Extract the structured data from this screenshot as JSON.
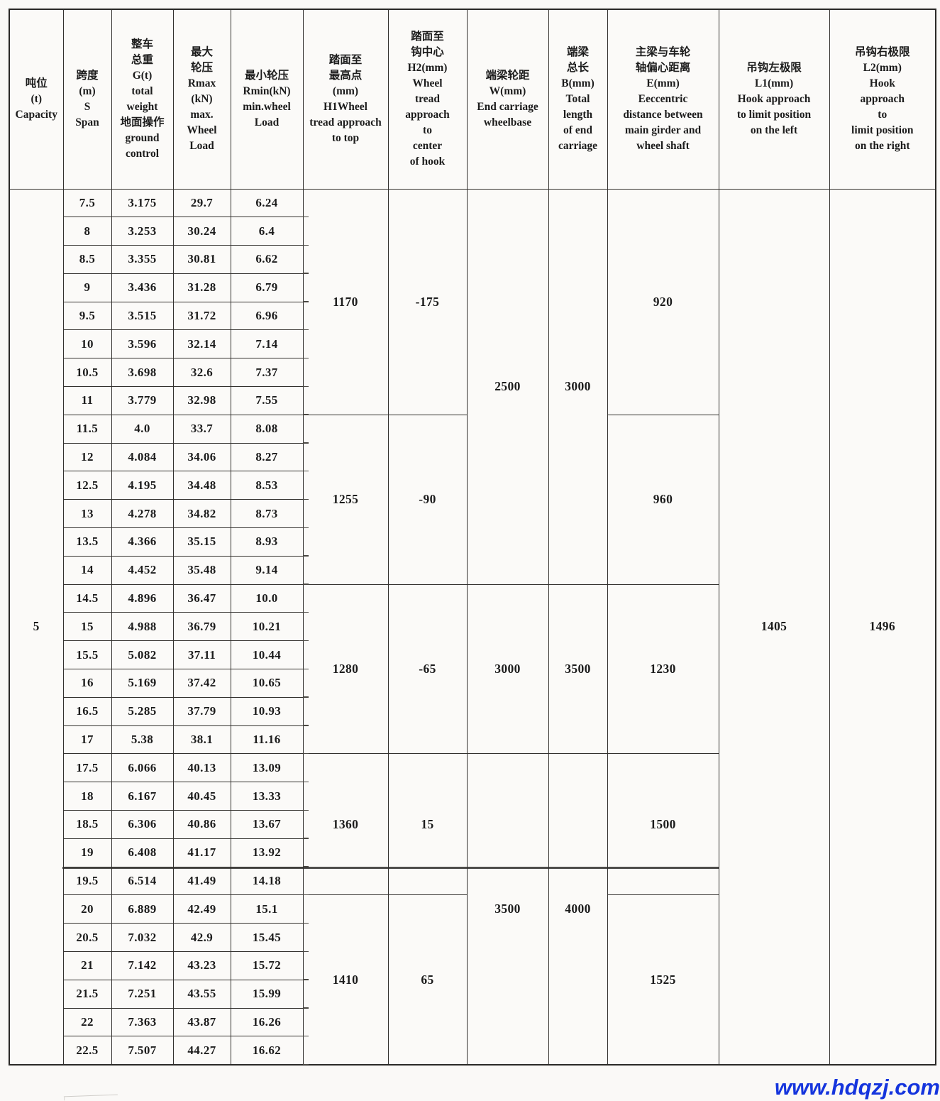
{
  "table": {
    "columns": [
      {
        "id": "capacity",
        "label_lines": [
          "吨位",
          "(t)",
          "Capacity"
        ]
      },
      {
        "id": "span",
        "label_lines": [
          "跨度",
          "(m)",
          "S",
          "Span"
        ]
      },
      {
        "id": "g",
        "label_lines": [
          "整车",
          "总重",
          "G(t)",
          "total",
          "weight",
          "地面操作",
          "ground",
          "control"
        ]
      },
      {
        "id": "rmax",
        "label_lines": [
          "最大",
          "轮压",
          "Rmax",
          "(kN)",
          "max.",
          "Wheel",
          "Load"
        ]
      },
      {
        "id": "rmin",
        "label_lines": [
          "最小轮压",
          "Rmin(kN)",
          "min.wheel",
          "Load"
        ]
      },
      {
        "id": "h1",
        "label_lines": [
          "踏面至",
          "最高点",
          "(mm)",
          "H1Wheel",
          "tread approach",
          "to top"
        ]
      },
      {
        "id": "h2",
        "label_lines": [
          "踏面至",
          "钩中心",
          "H2(mm)",
          "Wheel",
          "tread",
          "approach",
          "to",
          "center",
          "of hook"
        ]
      },
      {
        "id": "w",
        "label_lines": [
          "端梁轮距",
          "W(mm)",
          "End carriage",
          "wheelbase"
        ]
      },
      {
        "id": "b",
        "label_lines": [
          "端梁",
          "总长",
          "B(mm)",
          "Total",
          "length",
          "of end",
          "carriage"
        ]
      },
      {
        "id": "e",
        "label_lines": [
          "主梁与车轮",
          "轴偏心距离",
          "E(mm)",
          "Eeccentric",
          "distance between",
          "main girder and",
          "wheel shaft"
        ]
      },
      {
        "id": "l1",
        "label_lines": [
          "吊钩左极限",
          "L1(mm)",
          "Hook approach",
          "to limit position",
          "on the left"
        ]
      },
      {
        "id": "l2",
        "label_lines": [
          "吊钩右极限",
          "L2(mm)",
          "Hook",
          "approach",
          "to",
          "limit position",
          "on the right"
        ]
      }
    ],
    "capacity_value": "5",
    "l1_value": "1405",
    "l2_value": "1496",
    "rows": [
      {
        "span": "7.5",
        "g": "3.175",
        "rmax": "29.7",
        "rmin": "6.24"
      },
      {
        "span": "8",
        "g": "3.253",
        "rmax": "30.24",
        "rmin": "6.4"
      },
      {
        "span": "8.5",
        "g": "3.355",
        "rmax": "30.81",
        "rmin": "6.62"
      },
      {
        "span": "9",
        "g": "3.436",
        "rmax": "31.28",
        "rmin": "6.79"
      },
      {
        "span": "9.5",
        "g": "3.515",
        "rmax": "31.72",
        "rmin": "6.96"
      },
      {
        "span": "10",
        "g": "3.596",
        "rmax": "32.14",
        "rmin": "7.14"
      },
      {
        "span": "10.5",
        "g": "3.698",
        "rmax": "32.6",
        "rmin": "7.37"
      },
      {
        "span": "11",
        "g": "3.779",
        "rmax": "32.98",
        "rmin": "7.55"
      },
      {
        "span": "11.5",
        "g": "4.0",
        "rmax": "33.7",
        "rmin": "8.08"
      },
      {
        "span": "12",
        "g": "4.084",
        "rmax": "34.06",
        "rmin": "8.27"
      },
      {
        "span": "12.5",
        "g": "4.195",
        "rmax": "34.48",
        "rmin": "8.53"
      },
      {
        "span": "13",
        "g": "4.278",
        "rmax": "34.82",
        "rmin": "8.73"
      },
      {
        "span": "13.5",
        "g": "4.366",
        "rmax": "35.15",
        "rmin": "8.93"
      },
      {
        "span": "14",
        "g": "4.452",
        "rmax": "35.48",
        "rmin": "9.14"
      },
      {
        "span": "14.5",
        "g": "4.896",
        "rmax": "36.47",
        "rmin": "10.0"
      },
      {
        "span": "15",
        "g": "4.988",
        "rmax": "36.79",
        "rmin": "10.21"
      },
      {
        "span": "15.5",
        "g": "5.082",
        "rmax": "37.11",
        "rmin": "10.44"
      },
      {
        "span": "16",
        "g": "5.169",
        "rmax": "37.42",
        "rmin": "10.65"
      },
      {
        "span": "16.5",
        "g": "5.285",
        "rmax": "37.79",
        "rmin": "10.93"
      },
      {
        "span": "17",
        "g": "5.38",
        "rmax": "38.1",
        "rmin": "11.16"
      },
      {
        "span": "17.5",
        "g": "6.066",
        "rmax": "40.13",
        "rmin": "13.09"
      },
      {
        "span": "18",
        "g": "6.167",
        "rmax": "40.45",
        "rmin": "13.33"
      },
      {
        "span": "18.5",
        "g": "6.306",
        "rmax": "40.86",
        "rmin": "13.67"
      },
      {
        "span": "19",
        "g": "6.408",
        "rmax": "41.17",
        "rmin": "13.92"
      },
      {
        "span": "19.5",
        "g": "6.514",
        "rmax": "41.49",
        "rmin": "14.18"
      },
      {
        "span": "20",
        "g": "6.889",
        "rmax": "42.49",
        "rmin": "15.1"
      },
      {
        "span": "20.5",
        "g": "7.032",
        "rmax": "42.9",
        "rmin": "15.45"
      },
      {
        "span": "21",
        "g": "7.142",
        "rmax": "43.23",
        "rmin": "15.72"
      },
      {
        "span": "21.5",
        "g": "7.251",
        "rmax": "43.55",
        "rmin": "15.99"
      },
      {
        "span": "22",
        "g": "7.363",
        "rmax": "43.87",
        "rmin": "16.26"
      },
      {
        "span": "22.5",
        "g": "7.507",
        "rmax": "44.27",
        "rmin": "16.62"
      }
    ],
    "h1_h2_e_groups": [
      {
        "row_count": 8,
        "h1": "1170",
        "h2": "-175",
        "e": "920"
      },
      {
        "row_count": 6,
        "h1": "1255",
        "h2": "-90",
        "e": "960"
      },
      {
        "row_count": 6,
        "h1": "1280",
        "h2": "-65",
        "e": "1230"
      },
      {
        "row_count": 5,
        "h1": "1360",
        "h2": "15",
        "e": "1500"
      },
      {
        "row_count": 6,
        "h1": "1410",
        "h2": "65",
        "e": "1525"
      }
    ],
    "w_b_groups": [
      {
        "row_count": 14,
        "w": "2500",
        "b": "3000"
      },
      {
        "row_count": 6,
        "w": "3000",
        "b": "3500"
      },
      {
        "row_count": 11,
        "w": "3500",
        "b": "4000"
      }
    ]
  },
  "watermark": {
    "text": "www.hdqzj.com",
    "color": "#1535dd"
  }
}
